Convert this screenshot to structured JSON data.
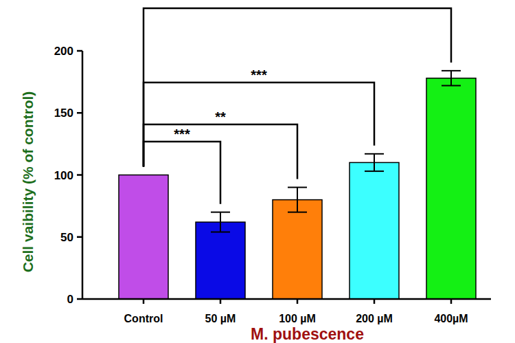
{
  "chart_data": {
    "type": "bar",
    "categories": [
      "Control",
      "50 µM",
      "100 µM",
      "200 µM",
      "400µM"
    ],
    "values": [
      100,
      62,
      80,
      110,
      178
    ],
    "errors": [
      0,
      8,
      10,
      7,
      6
    ],
    "colors": [
      "#c04de8",
      "#0a0ae6",
      "#ff7f0a",
      "#3cffff",
      "#14f014"
    ],
    "y_label": "Cell vaibility (% of control)",
    "x_label": "M. pubescence",
    "ylim": [
      0,
      200
    ],
    "yticks": [
      0,
      50,
      100,
      150,
      200
    ],
    "grid": false,
    "significance": [
      {
        "from": "Control",
        "to": "50 µM",
        "label": "***"
      },
      {
        "from": "Control",
        "to": "100 µM",
        "label": "**"
      },
      {
        "from": "Control",
        "to": "200 µM",
        "label": "***"
      },
      {
        "from": "Control",
        "to": "400µM"
      }
    ]
  }
}
